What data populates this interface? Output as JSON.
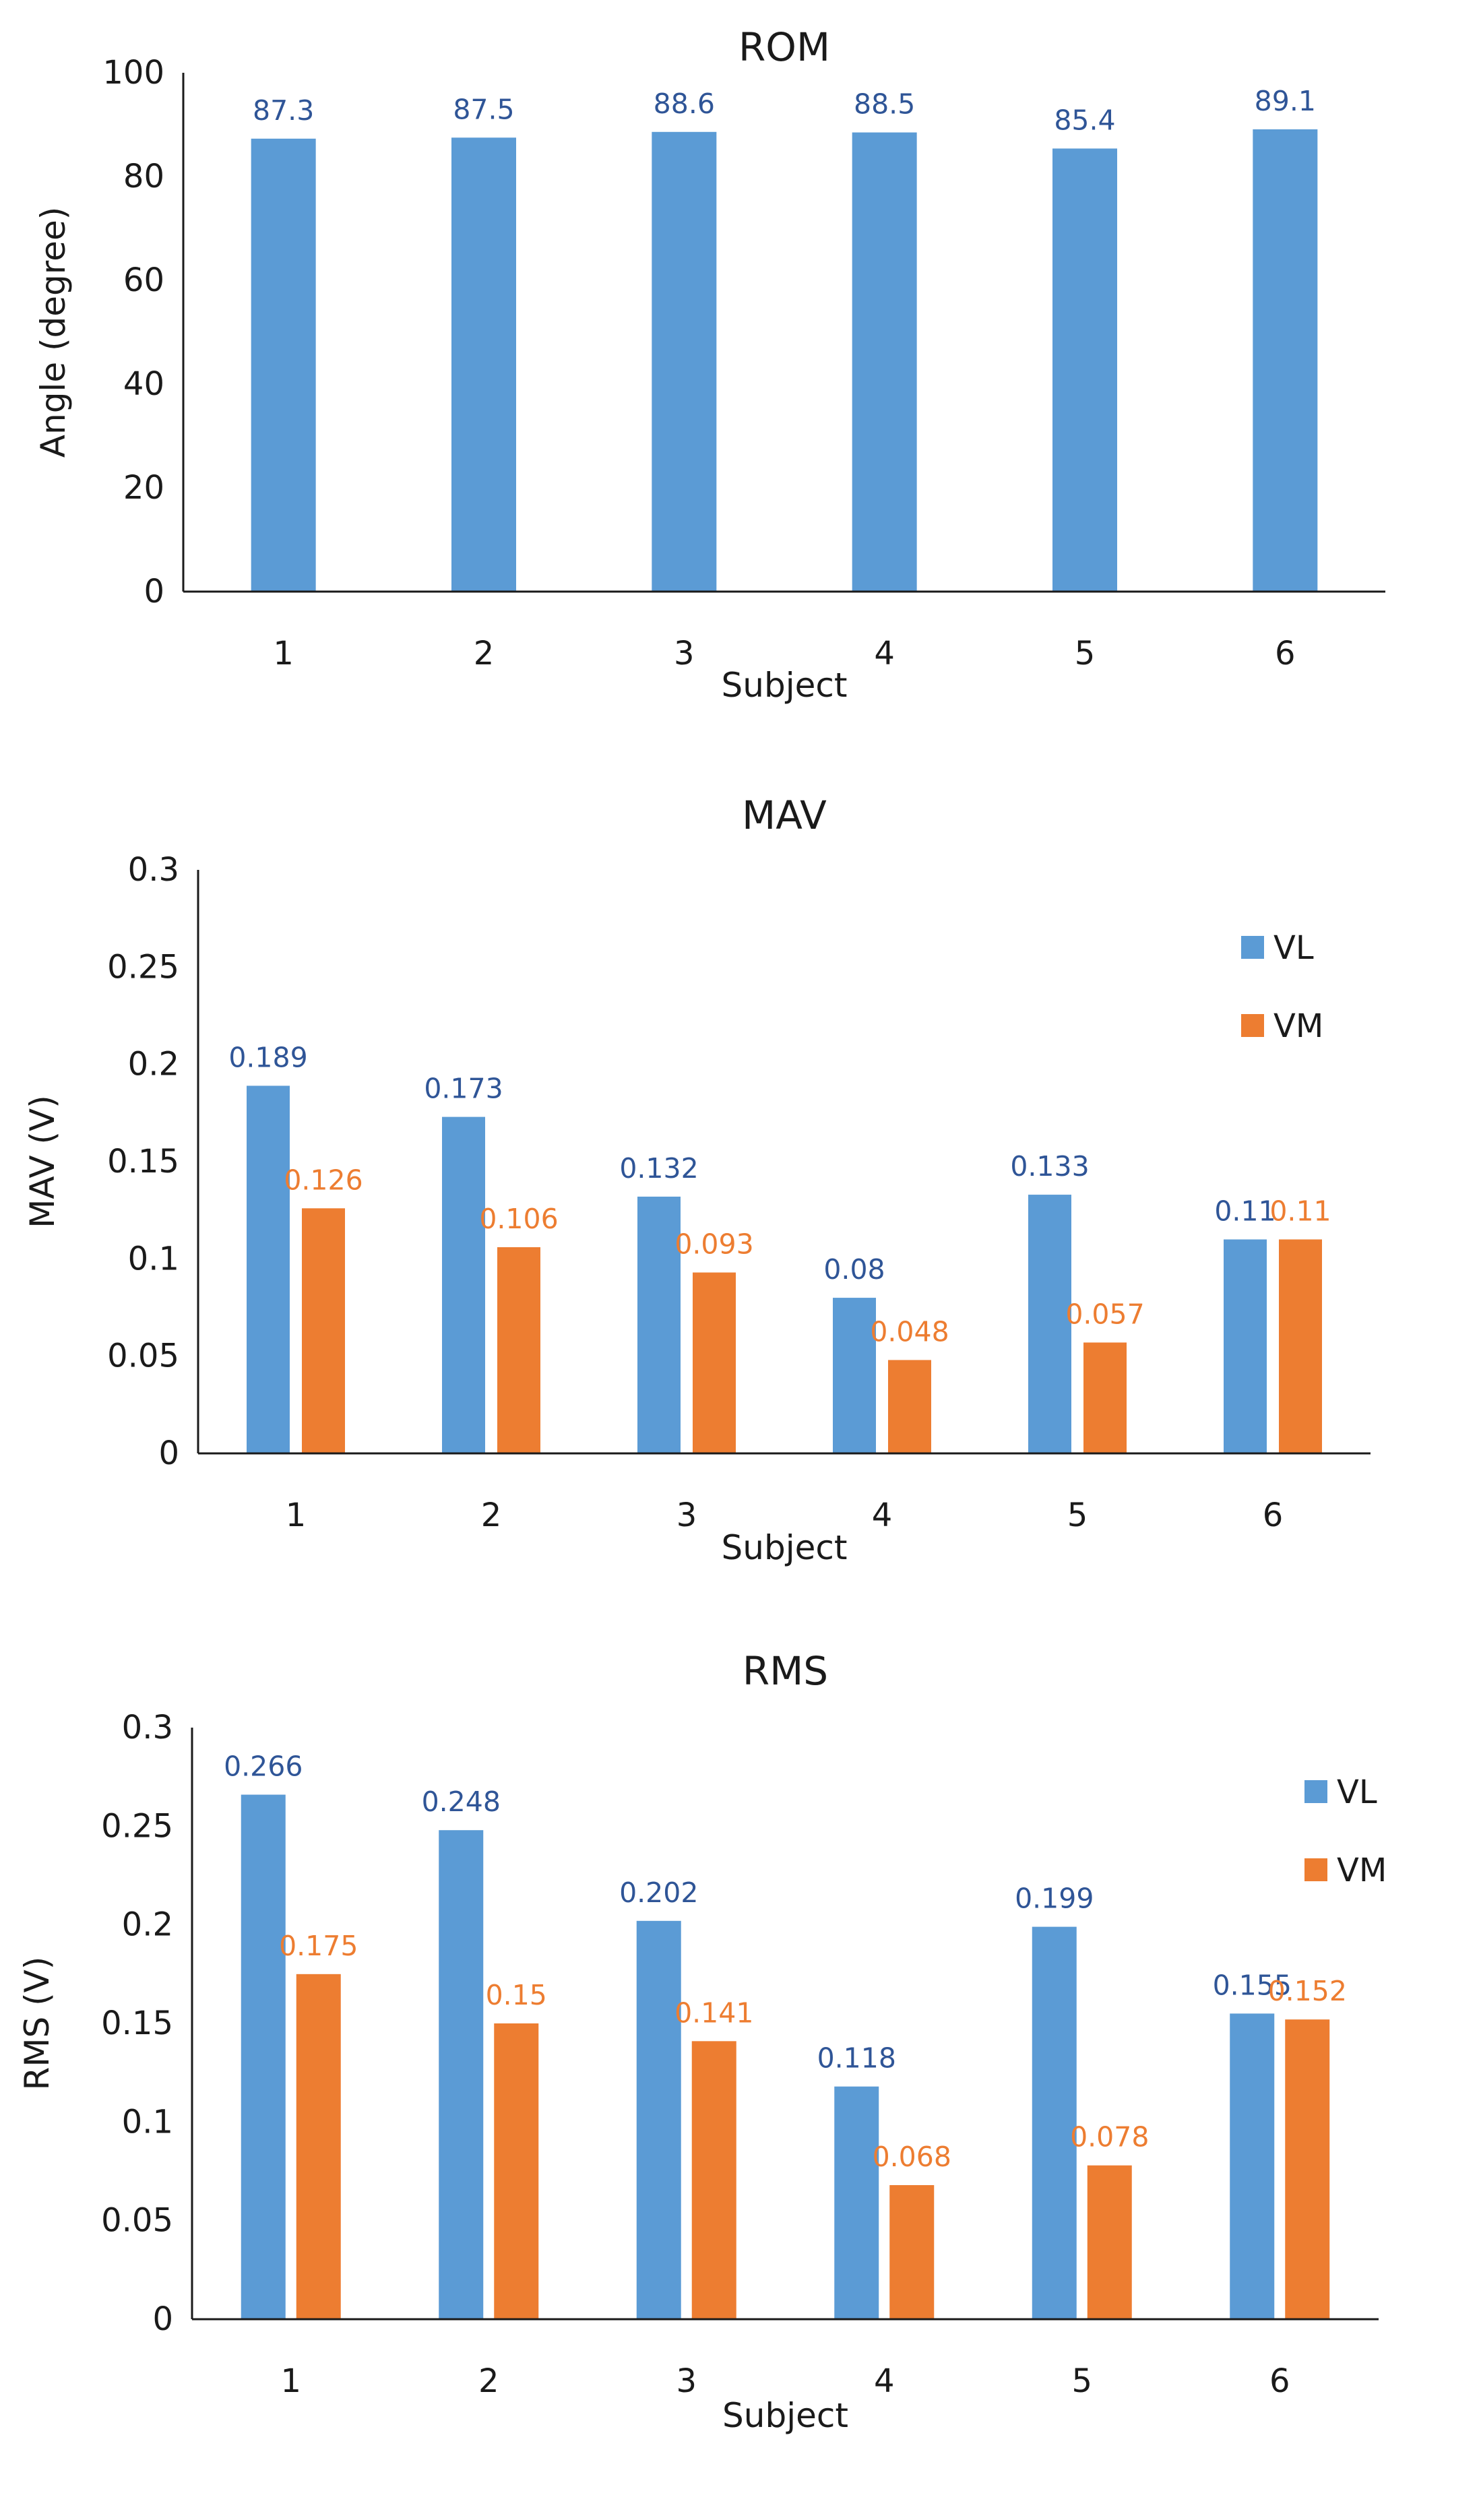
{
  "chart_data": [
    {
      "type": "bar",
      "title": "ROM",
      "xlabel": "Subject",
      "ylabel": "Angle (degree)",
      "categories": [
        "1",
        "2",
        "3",
        "4",
        "5",
        "6"
      ],
      "ylim": [
        0,
        100
      ],
      "yticks": [
        "0",
        "20",
        "40",
        "60",
        "80",
        "100"
      ],
      "series": [
        {
          "name": "ROM",
          "color": "#5b9bd5",
          "label_color": "#2f5597",
          "values": [
            87.3,
            87.5,
            88.6,
            88.5,
            85.4,
            89.1
          ],
          "labels": [
            "87.3",
            "87.5",
            "88.6",
            "88.5",
            "85.4",
            "89.1"
          ]
        }
      ],
      "legend": null,
      "grid": false
    },
    {
      "type": "bar",
      "title": "MAV",
      "xlabel": "Subject",
      "ylabel": "MAV (V)",
      "categories": [
        "1",
        "2",
        "3",
        "4",
        "5",
        "6"
      ],
      "ylim": [
        0,
        0.3
      ],
      "yticks": [
        "0",
        "0.05",
        "0.1",
        "0.15",
        "0.2",
        "0.25",
        "0.3"
      ],
      "series": [
        {
          "name": "VL",
          "color": "#5b9bd5",
          "label_color": "#2f5597",
          "values": [
            0.189,
            0.173,
            0.132,
            0.08,
            0.133,
            0.11
          ],
          "labels": [
            "0.189",
            "0.173",
            "0.132",
            "0.08",
            "0.133",
            "0.11"
          ]
        },
        {
          "name": "VM",
          "color": "#ed7d31",
          "label_color": "#ed7d31",
          "values": [
            0.126,
            0.106,
            0.093,
            0.048,
            0.057,
            0.11
          ],
          "labels": [
            "0.126",
            "0.106",
            "0.093",
            "0.048",
            "0.057",
            "0.11"
          ]
        }
      ],
      "legend": "top-right",
      "grid": false
    },
    {
      "type": "bar",
      "title": "RMS",
      "xlabel": "Subject",
      "ylabel": "RMS (V)",
      "categories": [
        "1",
        "2",
        "3",
        "4",
        "5",
        "6"
      ],
      "ylim": [
        0,
        0.3
      ],
      "yticks": [
        "0",
        "0.05",
        "0.1",
        "0.15",
        "0.2",
        "0.25",
        "0.3"
      ],
      "series": [
        {
          "name": "VL",
          "color": "#5b9bd5",
          "label_color": "#2f5597",
          "values": [
            0.266,
            0.248,
            0.202,
            0.118,
            0.199,
            0.155
          ],
          "labels": [
            "0.266",
            "0.248",
            "0.202",
            "0.118",
            "0.199",
            "0.155"
          ]
        },
        {
          "name": "VM",
          "color": "#ed7d31",
          "label_color": "#ed7d31",
          "values": [
            0.175,
            0.15,
            0.141,
            0.068,
            0.078,
            0.152
          ],
          "labels": [
            "0.175",
            "0.15",
            "0.141",
            "0.068",
            "0.078",
            "0.152"
          ]
        }
      ],
      "legend": "top-right",
      "grid": false
    }
  ]
}
